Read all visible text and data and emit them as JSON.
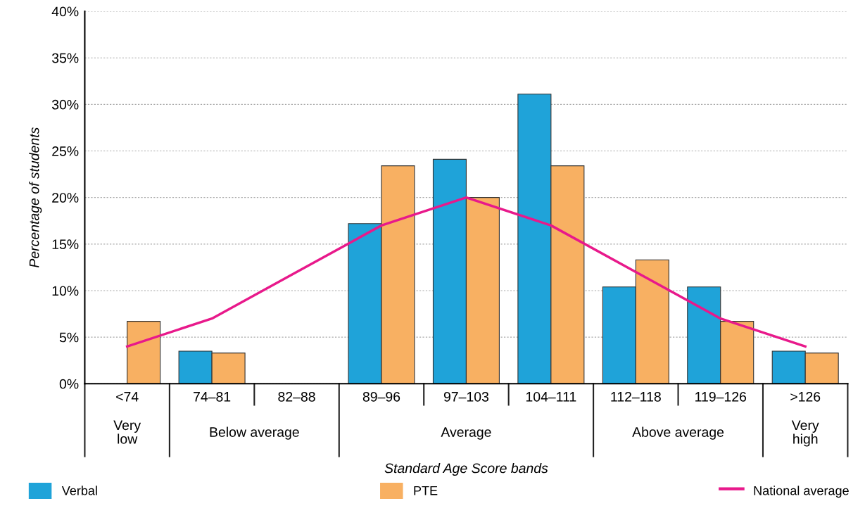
{
  "chart_data": {
    "type": "bar",
    "categories": [
      "<74",
      "74–81",
      "82–88",
      "89–96",
      "97–103",
      "104–111",
      "112–118",
      "119–126",
      ">126"
    ],
    "series": [
      {
        "name": "Verbal",
        "color": "#1fa3d9",
        "values": [
          null,
          3.5,
          null,
          17.2,
          24.1,
          31.1,
          10.4,
          10.4,
          3.5
        ]
      },
      {
        "name": "PTE",
        "color": "#f8b062",
        "values": [
          6.7,
          3.3,
          null,
          23.4,
          20.0,
          23.4,
          13.3,
          6.7,
          3.3
        ]
      },
      {
        "name": "National average",
        "type": "line",
        "color": "#e8198b",
        "values": [
          4,
          7,
          12,
          17,
          20,
          17,
          12,
          7,
          4
        ]
      }
    ],
    "xlabel": "Standard Age Score bands",
    "ylabel": "Percentage of students",
    "ylim": [
      0,
      40
    ],
    "yticks": [
      {
        "value": 0,
        "label": "0%"
      },
      {
        "value": 5,
        "label": "5%"
      },
      {
        "value": 10,
        "label": "10%"
      },
      {
        "value": 15,
        "label": "15%"
      },
      {
        "value": 20,
        "label": "20%"
      },
      {
        "value": 25,
        "label": "25%"
      },
      {
        "value": 30,
        "label": "30%"
      },
      {
        "value": 35,
        "label": "35%"
      },
      {
        "value": 40,
        "label": "40%"
      }
    ],
    "annotations": [
      "Very low",
      "Below average",
      "Average",
      "Above average",
      "Very high"
    ],
    "grid": "y",
    "legend": "bottom",
    "marker": "none",
    "line_style": "solid"
  }
}
